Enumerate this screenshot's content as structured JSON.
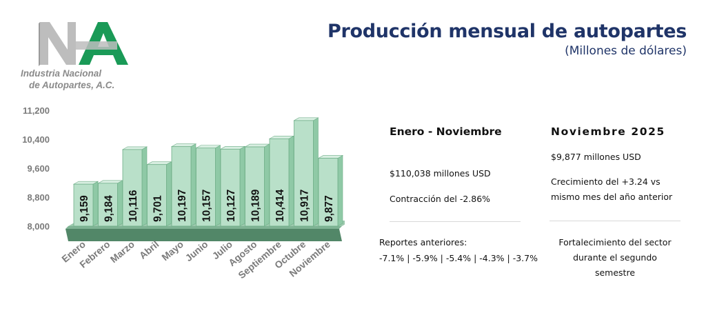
{
  "header": {
    "title": "Producción mensual de autopartes",
    "subtitle": "(Millones de dólares)"
  },
  "logo": {
    "line1": "Industria Nacional",
    "line2": "de Autopartes, A.C.",
    "mark_colors": {
      "grey": "#bdbdbd",
      "green": "#1a9a57"
    }
  },
  "colors": {
    "bar_fill": "#b9e0c9",
    "bar_top": "#d9efe2",
    "bar_side": "#8fc9a6",
    "bar_stroke": "#6fae88",
    "floor": "#3f7a58",
    "axis_text": "#7a7a7a",
    "title": "#1f3468"
  },
  "chart_data": {
    "type": "bar",
    "categories": [
      "Enero",
      "Febrero",
      "Marzo",
      "Abril",
      "Mayo",
      "Junio",
      "Julio",
      "Agosto",
      "Septiembre",
      "Octubre",
      "Noviembre"
    ],
    "values": [
      9159,
      9184,
      10116,
      9701,
      10197,
      10157,
      10127,
      10189,
      10414,
      10917,
      9877
    ],
    "value_labels": [
      "9,159",
      "9,184",
      "10,116",
      "9,701",
      "10,197",
      "10,157",
      "10,127",
      "10,189",
      "10,414",
      "10,917",
      "9,877"
    ],
    "y_ticks": [
      "8,000",
      "8,800",
      "9,600",
      "10,400",
      "11,200"
    ],
    "y_tick_values": [
      8000,
      8800,
      9600,
      10400,
      11200
    ],
    "ylim": [
      8000,
      11200
    ],
    "grid": false,
    "style": "3d"
  },
  "panel_left": {
    "heading": "Enero - Noviembre",
    "amount": "$110,038 millones USD",
    "change": "Contracción del -2.86%",
    "previous_label": "Reportes anteriores:",
    "previous_values": "-7.1% | -5.9% | -5.4% | -4.3% | -3.7%"
  },
  "panel_right": {
    "heading": "Noviembre 2025",
    "amount": "$9,877 millones USD",
    "growth_line1": "Crecimiento del +3.24 vs",
    "growth_line2": "mismo mes del año anterior",
    "note_line1": "Fortalecimiento del sector",
    "note_line2": "durante el segundo",
    "note_line3": "semestre"
  }
}
